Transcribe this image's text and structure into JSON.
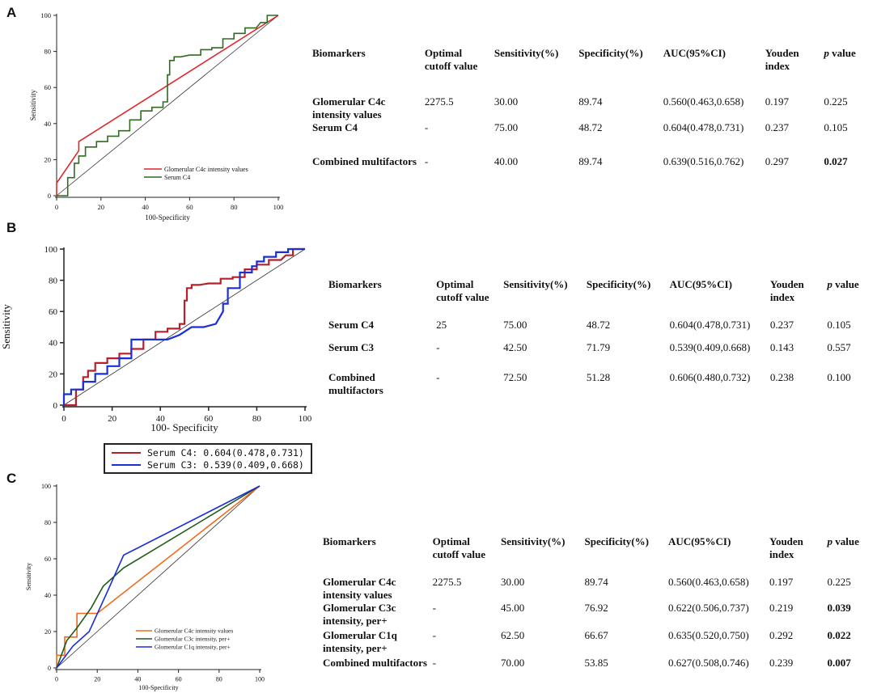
{
  "panels": [
    {
      "label": "A",
      "chart_data": {
        "type": "line",
        "xlabel": "100-Specificity",
        "ylabel": "Sensitivity",
        "xlim": [
          0,
          100
        ],
        "ylim": [
          0,
          100
        ],
        "xticks": [
          0,
          20,
          40,
          60,
          80,
          100
        ],
        "yticks": [
          0,
          20,
          40,
          60,
          80,
          100
        ],
        "diagonal": true,
        "legend_position": "bottom-right",
        "series": [
          {
            "name": "Glomerular C4c intensity values",
            "color": "#e0262a",
            "x": [
              0,
              0,
              10,
              10,
              100
            ],
            "y": [
              0,
              7,
              25,
              30,
              100
            ]
          },
          {
            "name": "Serum C4",
            "color": "#2e6b1f",
            "x": [
              0,
              5,
              5,
              8,
              8,
              10,
              10,
              13,
              13,
              18,
              18,
              23,
              23,
              28,
              28,
              33,
              33,
              38,
              38,
              43,
              43,
              48,
              48,
              50,
              50,
              51,
              51,
              53,
              53,
              56,
              60,
              65,
              65,
              70,
              70,
              75,
              75,
              80,
              80,
              85,
              85,
              90,
              92,
              95,
              95,
              100
            ],
            "y": [
              0,
              0,
              10,
              10,
              18,
              18,
              22,
              22,
              27,
              27,
              30,
              30,
              33,
              33,
              36,
              36,
              42,
              42,
              47,
              47,
              49,
              49,
              52,
              52,
              67,
              67,
              75,
              75,
              77,
              77,
              78,
              78,
              81,
              81,
              82,
              82,
              87,
              87,
              90,
              90,
              93,
              93,
              96,
              96,
              100,
              100
            ]
          }
        ]
      },
      "table": {
        "headers": [
          "Biomarkers",
          "Optimal cutoff value",
          "Sensitivity(%)",
          "Specificity(%)",
          "AUC(95%CI)",
          "Youden index",
          "p value"
        ],
        "rows": [
          {
            "biomarker": "Glomerular C4c intensity values",
            "cutoff": "2275.5",
            "sens": "30.00",
            "spec": "89.74",
            "auc": "0.560(0.463,0.658)",
            "youden": "0.197",
            "p": "0.225",
            "sig": false
          },
          {
            "biomarker": "Serum C4",
            "cutoff": "-",
            "sens": "75.00",
            "spec": "48.72",
            "auc": "0.604(0.478,0.731)",
            "youden": "0.237",
            "p": "0.105",
            "sig": false
          },
          {
            "biomarker": "Combined multifactors",
            "cutoff": "-",
            "sens": "40.00",
            "spec": "89.74",
            "auc": "0.639(0.516,0.762)",
            "youden": "0.297",
            "p": "0.027",
            "sig": true
          }
        ]
      }
    },
    {
      "label": "B",
      "chart_data": {
        "type": "line",
        "xlabel": "100- Specificity",
        "ylabel": "Sensitivity",
        "xlim": [
          0,
          100
        ],
        "ylim": [
          0,
          100
        ],
        "xticks": [
          0,
          20,
          40,
          60,
          80,
          100
        ],
        "yticks": [
          0,
          20,
          40,
          60,
          80,
          100
        ],
        "diagonal": true,
        "series": [
          {
            "name": "Serum C4: 0.604(0.478,0.731)",
            "color": "#b5202a",
            "x": [
              0,
              5,
              5,
              8,
              8,
              10,
              10,
              13,
              13,
              18,
              18,
              23,
              23,
              28,
              28,
              33,
              33,
              38,
              38,
              43,
              43,
              48,
              48,
              50,
              50,
              51,
              51,
              53,
              53,
              56,
              60,
              65,
              65,
              70,
              70,
              75,
              75,
              80,
              80,
              85,
              85,
              90,
              92,
              95,
              95,
              100
            ],
            "y": [
              0,
              0,
              10,
              10,
              18,
              18,
              22,
              22,
              27,
              27,
              30,
              30,
              33,
              33,
              36,
              36,
              42,
              42,
              47,
              47,
              49,
              49,
              52,
              52,
              67,
              67,
              75,
              75,
              77,
              77,
              78,
              78,
              81,
              81,
              82,
              82,
              87,
              87,
              90,
              90,
              93,
              93,
              96,
              96,
              100,
              100
            ]
          },
          {
            "name": "Serum C3: 0.539(0.409,0.668)",
            "color": "#1a2fd6",
            "x": [
              0,
              0,
              3,
              3,
              8,
              8,
              13,
              13,
              18,
              18,
              23,
              23,
              28,
              28,
              43,
              48,
              53,
              58,
              63,
              66,
              66,
              68,
              68,
              73,
              73,
              78,
              78,
              80,
              80,
              83,
              83,
              88,
              88,
              93,
              93,
              100
            ],
            "y": [
              0,
              7,
              7,
              10,
              10,
              15,
              15,
              20,
              20,
              25,
              25,
              30,
              30,
              42,
              42,
              45,
              50,
              50,
              52,
              60,
              65,
              65,
              75,
              75,
              85,
              85,
              89,
              89,
              92,
              92,
              95,
              95,
              98,
              98,
              100,
              100
            ]
          }
        ]
      },
      "legend": [
        "Serum C4: 0.604(0.478,0.731)",
        "Serum C3: 0.539(0.409,0.668)"
      ],
      "table": {
        "headers": [
          "Biomarkers",
          "Optimal cutoff value",
          "Sensitivity(%)",
          "Specificity(%)",
          "AUC(95%CI)",
          "Youden index",
          "p value"
        ],
        "rows": [
          {
            "biomarker": "Serum C4",
            "cutoff": "25",
            "sens": "75.00",
            "spec": "48.72",
            "auc": "0.604(0.478,0.731)",
            "youden": "0.237",
            "p": "0.105",
            "sig": false
          },
          {
            "biomarker": "Serum C3",
            "cutoff": "-",
            "sens": "42.50",
            "spec": "71.79",
            "auc": "0.539(0.409,0.668)",
            "youden": "0.143",
            "p": "0.557",
            "sig": false
          },
          {
            "biomarker": "Combined multifactors",
            "cutoff": "-",
            "sens": "72.50",
            "spec": "51.28",
            "auc": "0.606(0.480,0.732)",
            "youden": "0.238",
            "p": "0.100",
            "sig": false
          }
        ]
      }
    },
    {
      "label": "C",
      "chart_data": {
        "type": "line",
        "xlabel": "100-Specificity",
        "ylabel": "Sensitivity",
        "xlim": [
          0,
          100
        ],
        "ylim": [
          0,
          100
        ],
        "xticks": [
          0,
          20,
          40,
          60,
          80,
          100
        ],
        "yticks": [
          0,
          20,
          40,
          60,
          80,
          100
        ],
        "diagonal": true,
        "legend_position": "bottom-right",
        "series": [
          {
            "name": "Glomerular C4c intensity values",
            "color": "#f26a1b",
            "x": [
              0,
              0,
              4,
              4,
              10,
              10,
              20,
              100
            ],
            "y": [
              0,
              7,
              7,
              17,
              17,
              30,
              30,
              100
            ]
          },
          {
            "name": "Glomerular C3c intensity, per+",
            "color": "#1e5c1a",
            "x": [
              0,
              5,
              10,
              17,
              23,
              33,
              100
            ],
            "y": [
              0,
              15,
              22,
              33,
              45,
              55,
              100
            ]
          },
          {
            "name": "Glomerular C1q intensity, per+",
            "color": "#1a2fd6",
            "x": [
              0,
              8,
              16,
              25,
              33,
              100
            ],
            "y": [
              0,
              12,
              20,
              42,
              62,
              100
            ]
          }
        ]
      },
      "table": {
        "headers": [
          "Biomarkers",
          "Optimal cutoff value",
          "Sensitivity(%)",
          "Specificity(%)",
          "AUC(95%CI)",
          "Youden index",
          "p value"
        ],
        "rows": [
          {
            "biomarker": "Glomerular C4c intensity values",
            "cutoff": "2275.5",
            "sens": "30.00",
            "spec": "89.74",
            "auc": "0.560(0.463,0.658)",
            "youden": "0.197",
            "p": "0.225",
            "sig": false
          },
          {
            "biomarker": "Glomerular C3c intensity, per+",
            "cutoff": "-",
            "sens": "45.00",
            "spec": "76.92",
            "auc": "0.622(0.506,0.737)",
            "youden": "0.219",
            "p": "0.039",
            "sig": true
          },
          {
            "biomarker": "Glomerular C1q intensity, per+",
            "cutoff": "-",
            "sens": "62.50",
            "spec": "66.67",
            "auc": "0.635(0.520,0.750)",
            "youden": "0.292",
            "p": "0.022",
            "sig": true
          },
          {
            "biomarker": "Combined multifactors",
            "cutoff": "-",
            "sens": "70.00",
            "spec": "53.85",
            "auc": "0.627(0.508,0.746)",
            "youden": "0.239",
            "p": "0.007",
            "sig": true
          }
        ]
      }
    }
  ]
}
